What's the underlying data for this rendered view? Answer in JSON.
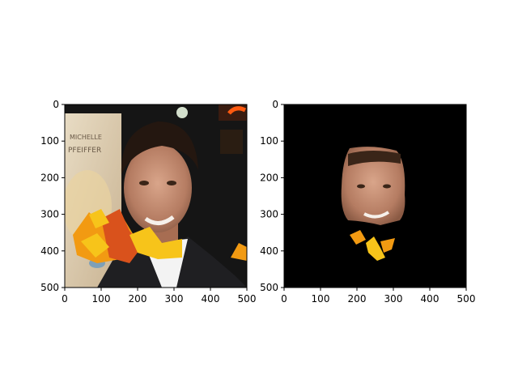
{
  "chart_data": [
    {
      "type": "image",
      "title": "",
      "xlabel": "",
      "ylabel": "",
      "xlim": [
        0,
        500
      ],
      "ylim": [
        500,
        0
      ],
      "xticks": [
        0,
        100,
        200,
        300,
        400,
        500
      ],
      "yticks": [
        0,
        100,
        200,
        300,
        400,
        500
      ],
      "tick_labels_x": [
        "0",
        "100",
        "200",
        "300",
        "400",
        "500"
      ],
      "tick_labels_y": [
        "0",
        "100",
        "200",
        "300",
        "400",
        "500"
      ],
      "image_content": "photo of smiling man in dark suit with autumn leaves overlay, poster with text on left",
      "poster_text": [
        "MICHELLE",
        "PFEIFFER"
      ]
    },
    {
      "type": "image",
      "title": "",
      "xlabel": "",
      "ylabel": "",
      "xlim": [
        0,
        500
      ],
      "ylim": [
        500,
        0
      ],
      "xticks": [
        0,
        100,
        200,
        300,
        400,
        500
      ],
      "yticks": [
        0,
        100,
        200,
        300,
        400,
        500
      ],
      "tick_labels_x": [
        "0",
        "100",
        "200",
        "300",
        "400",
        "500"
      ],
      "tick_labels_y": [
        "0",
        "100",
        "200",
        "300",
        "400",
        "500"
      ],
      "image_content": "segmentation mask: face region with leaf fragments on black background"
    }
  ],
  "colors": {
    "axis": "#000000",
    "mask_background": "#000000",
    "leaf_orange": "#f29a12",
    "leaf_red": "#d9521c",
    "leaf_yellow": "#f7c41a",
    "skin": "#c48c70",
    "suit": "#1f1f22"
  }
}
